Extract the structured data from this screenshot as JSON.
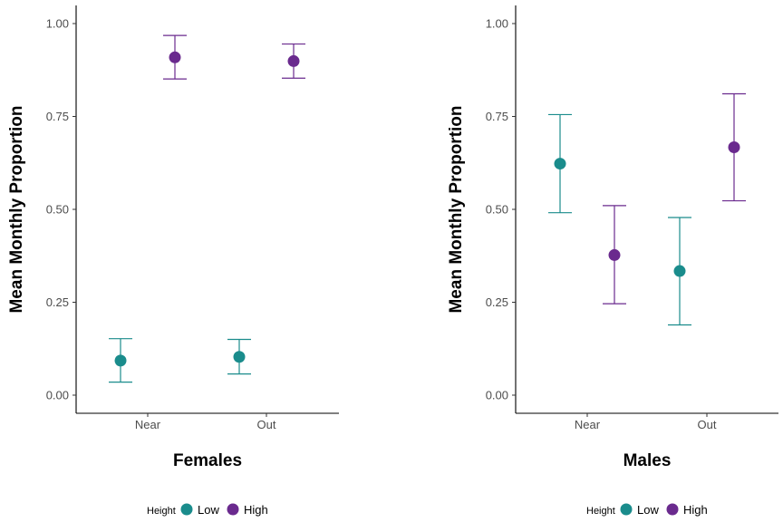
{
  "legend": {
    "title": "Height",
    "items": [
      {
        "name": "Low",
        "color": "#1a8c8c"
      },
      {
        "name": "High",
        "color": "#6a2a8e"
      }
    ]
  },
  "chart_data": [
    {
      "type": "scatter",
      "panel": "Females",
      "xlabel": "Females",
      "ylabel": "Mean Monthly Proportion",
      "categories": [
        "Near",
        "Out"
      ],
      "ylim": [
        0,
        1.05
      ],
      "yticks": [
        "0.00",
        "0.25",
        "0.50",
        "0.75",
        "1.00"
      ],
      "grid": false,
      "legend_position": "bottom",
      "series": [
        {
          "name": "Low",
          "color": "#1a8c8c",
          "values": [
            0.093,
            0.103
          ],
          "lower": [
            0.035,
            0.057
          ],
          "upper": [
            0.152,
            0.15
          ]
        },
        {
          "name": "High",
          "color": "#6a2a8e",
          "values": [
            0.909,
            0.899
          ],
          "lower": [
            0.851,
            0.853
          ],
          "upper": [
            0.968,
            0.945
          ]
        }
      ]
    },
    {
      "type": "scatter",
      "panel": "Males",
      "xlabel": "Males",
      "ylabel": "Mean Monthly Proportion",
      "categories": [
        "Near",
        "Out"
      ],
      "ylim": [
        0,
        1.05
      ],
      "yticks": [
        "0.00",
        "0.25",
        "0.50",
        "0.75",
        "1.00"
      ],
      "grid": false,
      "legend_position": "bottom",
      "series": [
        {
          "name": "Low",
          "color": "#1a8c8c",
          "values": [
            0.623,
            0.334
          ],
          "lower": [
            0.491,
            0.189
          ],
          "upper": [
            0.755,
            0.478
          ]
        },
        {
          "name": "High",
          "color": "#6a2a8e",
          "values": [
            0.377,
            0.667
          ],
          "lower": [
            0.246,
            0.523
          ],
          "upper": [
            0.51,
            0.811
          ]
        }
      ]
    }
  ]
}
